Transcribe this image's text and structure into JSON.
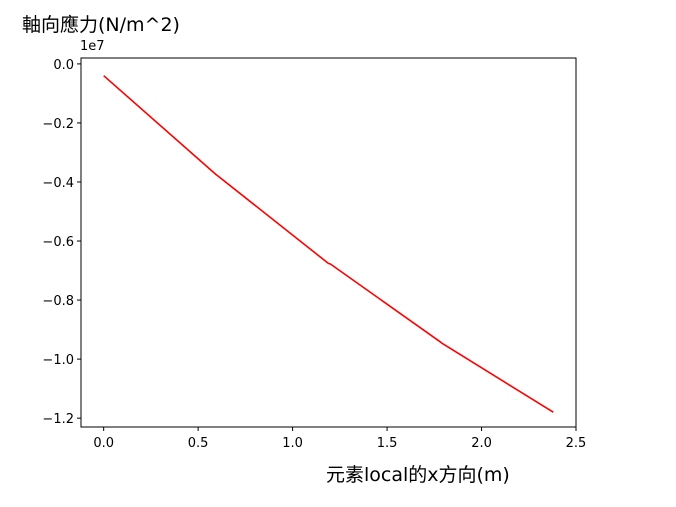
{
  "chart_data": {
    "type": "line",
    "title": "",
    "ylabel": "軸向應力(N/m^2)",
    "xlabel": "元素local的x方向(m)",
    "y_offset_label": "1e7",
    "xlim": [
      -0.12,
      2.5
    ],
    "ylim": [
      -1.23,
      0.02
    ],
    "x_ticks": [
      0.0,
      0.5,
      1.0,
      1.5,
      2.0,
      2.5
    ],
    "x_tick_labels": [
      "0.0",
      "0.5",
      "1.0",
      "1.5",
      "2.0",
      "2.5"
    ],
    "y_ticks": [
      0.0,
      -0.2,
      -0.4,
      -0.6,
      -0.8,
      -1.0,
      -1.2
    ],
    "y_tick_labels": [
      "0.0",
      "−0.2",
      "−0.4",
      "−0.6",
      "−0.8",
      "−1.0",
      "−1.2"
    ],
    "grid": false,
    "series": [
      {
        "color": "#ff0000",
        "x": [
          0.0,
          0.595,
          0.6,
          1.19,
          1.2,
          1.785,
          1.79,
          2.38
        ],
        "y": [
          -0.04,
          -0.375,
          -0.377,
          -0.676,
          -0.678,
          -0.943,
          -0.946,
          -1.18
        ]
      }
    ]
  }
}
